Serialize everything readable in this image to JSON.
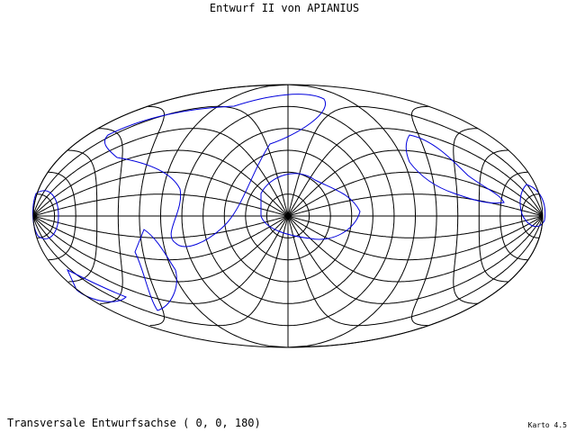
{
  "title": "Entwurf II von APIANIUS",
  "footer": {
    "projection": "Transversale Entwurfsachse ( 0, 0, 180)",
    "software": "Karto 4.5"
  }
}
